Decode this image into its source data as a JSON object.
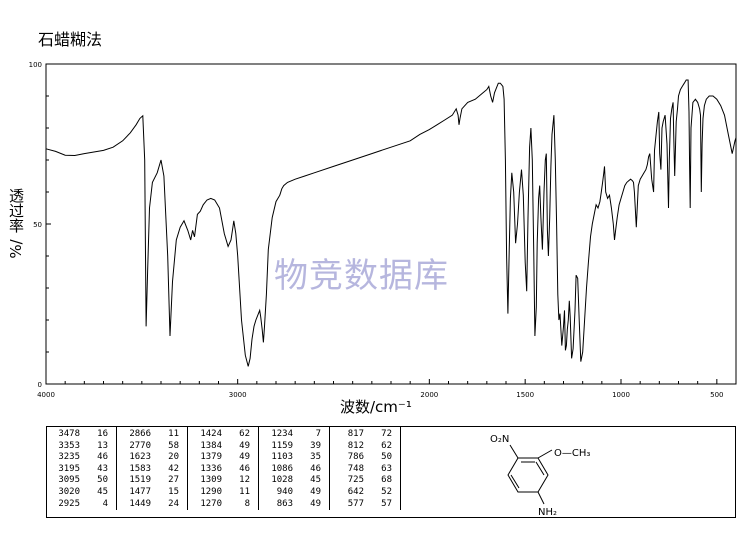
{
  "method": "石蜡糊法",
  "ylabel_main": "透过率",
  "ylabel_unit": "%/",
  "xlabel": "波数/cm⁻¹",
  "watermark": "物竞数据库",
  "colors": {
    "line": "#000000",
    "watermark": "#b6b6de"
  },
  "chart_data": {
    "type": "line",
    "title": "",
    "xlabel": "波数/cm⁻¹",
    "ylabel": "透过率 %/",
    "xlim": [
      4000,
      400
    ],
    "ylim": [
      0,
      100
    ],
    "x_ticks": [
      4000,
      3000,
      2000,
      1500,
      1000,
      500
    ],
    "y_ticks": [
      0,
      50,
      100
    ],
    "grid": false,
    "x": [
      4000,
      3950,
      3900,
      3850,
      3800,
      3750,
      3700,
      3650,
      3600,
      3560,
      3530,
      3510,
      3495,
      3485,
      3478,
      3470,
      3460,
      3445,
      3420,
      3400,
      3385,
      3365,
      3353,
      3340,
      3320,
      3300,
      3280,
      3260,
      3245,
      3235,
      3225,
      3210,
      3195,
      3180,
      3160,
      3140,
      3120,
      3095,
      3070,
      3050,
      3035,
      3025,
      3020,
      3010,
      3000,
      2990,
      2980,
      2960,
      2945,
      2935,
      2925,
      2915,
      2905,
      2895,
      2885,
      2880,
      2872,
      2866,
      2860,
      2850,
      2840,
      2820,
      2800,
      2780,
      2770,
      2760,
      2740,
      2700,
      2650,
      2600,
      2500,
      2400,
      2300,
      2200,
      2100,
      2050,
      2000,
      1960,
      1920,
      1880,
      1860,
      1850,
      1845,
      1840,
      1830,
      1800,
      1760,
      1720,
      1700,
      1690,
      1680,
      1670,
      1660,
      1640,
      1630,
      1623,
      1616,
      1610,
      1603,
      1597,
      1590,
      1583,
      1577,
      1570,
      1560,
      1550,
      1540,
      1530,
      1519,
      1510,
      1500,
      1492,
      1485,
      1477,
      1470,
      1463,
      1455,
      1449,
      1442,
      1437,
      1430,
      1424,
      1418,
      1410,
      1402,
      1395,
      1390,
      1384,
      1379,
      1372,
      1366,
      1360,
      1350,
      1343,
      1336,
      1330,
      1324,
      1318,
      1309,
      1300,
      1295,
      1290,
      1285,
      1280,
      1275,
      1270,
      1265,
      1258,
      1250,
      1240,
      1234,
      1226,
      1218,
      1210,
      1200,
      1190,
      1180,
      1170,
      1159,
      1150,
      1140,
      1130,
      1120,
      1110,
      1103,
      1096,
      1090,
      1086,
      1080,
      1070,
      1060,
      1050,
      1040,
      1034,
      1028,
      1020,
      1010,
      1000,
      990,
      980,
      970,
      960,
      950,
      940,
      935,
      930,
      920,
      910,
      900,
      890,
      880,
      870,
      863,
      856,
      850,
      840,
      830,
      825,
      817,
      810,
      803,
      798,
      792,
      786,
      780,
      770,
      760,
      752,
      748,
      742,
      735,
      728,
      725,
      720,
      712,
      705,
      700,
      690,
      680,
      670,
      660,
      650,
      645,
      642,
      639,
      635,
      625,
      612,
      600,
      590,
      585,
      581,
      577,
      572,
      565,
      555,
      540,
      520,
      500,
      480,
      460,
      440,
      420,
      405,
      400
    ],
    "y": [
      73.5,
      72.7,
      71.5,
      71.4,
      72.0,
      72.5,
      73.0,
      74.0,
      76.0,
      78.5,
      81.0,
      83.0,
      83.8,
      70.0,
      18.0,
      35.0,
      55.0,
      63.0,
      66.0,
      70.0,
      65.0,
      40.0,
      15.0,
      32.0,
      45.0,
      49.0,
      51.0,
      48.0,
      45.0,
      48.0,
      46.0,
      53.0,
      54.0,
      56.0,
      57.5,
      58.0,
      57.5,
      55.0,
      47.0,
      43.0,
      45.0,
      49.0,
      51.0,
      47.0,
      40.0,
      30.0,
      20.0,
      9.0,
      5.5,
      8.0,
      14.0,
      18.0,
      20.0,
      21.5,
      23.0,
      21.0,
      17.0,
      13.0,
      18.0,
      28.0,
      42.0,
      52.0,
      57.0,
      59.0,
      61.0,
      62.0,
      63.0,
      64.0,
      65.0,
      66.0,
      68.0,
      70.0,
      72.0,
      74.0,
      76.0,
      78.0,
      79.5,
      81.0,
      82.5,
      84.0,
      86.0,
      84.0,
      81.0,
      83.0,
      86.0,
      88.0,
      89.0,
      91.0,
      92.0,
      93.0,
      90.0,
      88.0,
      91.0,
      94.0,
      94.0,
      93.5,
      93.0,
      89.0,
      70.0,
      40.0,
      22.0,
      43.0,
      58.0,
      66.0,
      60.0,
      44.0,
      50.0,
      60.0,
      67.0,
      59.0,
      38.0,
      29.0,
      52.0,
      74.0,
      80.0,
      70.0,
      40.0,
      15.0,
      24.0,
      44.0,
      58.0,
      62.0,
      52.0,
      42.0,
      60.0,
      70.0,
      72.0,
      48.0,
      40.0,
      52.0,
      68.0,
      78.0,
      84.0,
      70.0,
      50.0,
      28.0,
      20.0,
      22.0,
      12.0,
      18.0,
      23.0,
      10.5,
      12.0,
      17.0,
      20.0,
      26.0,
      21.0,
      8.0,
      11.0,
      23.0,
      34.0,
      33.0,
      20.0,
      7.0,
      10.0,
      20.0,
      30.0,
      38.0,
      46.0,
      50.0,
      53.0,
      56.0,
      55.0,
      57.0,
      60.0,
      63.0,
      66.0,
      68.0,
      60.0,
      58.0,
      59.0,
      55.0,
      50.0,
      45.0,
      48.0,
      52.0,
      56.0,
      58.0,
      60.0,
      62.0,
      63.0,
      63.5,
      64.0,
      63.5,
      63.0,
      60.0,
      49.0,
      62.0,
      64.0,
      65.0,
      66.0,
      67.0,
      68.5,
      71.0,
      72.0,
      64.0,
      60.0,
      73.0,
      78.0,
      82.0,
      85.0,
      72.0,
      67.0,
      80.0,
      82.0,
      84.0,
      75.0,
      55.0,
      70.0,
      83.0,
      86.0,
      88.0,
      78.0,
      65.0,
      82.0,
      86.0,
      90.0,
      92.0,
      93.0,
      94.0,
      95.0,
      95.0,
      85.0,
      68.0,
      55.0,
      80.0,
      88.0,
      89.0,
      88.0,
      86.0,
      84.0,
      60.0,
      75.0,
      83.0,
      87.0,
      89.0,
      90.0,
      90.0,
      89.0,
      87.0,
      84.0,
      78.0,
      72.0,
      76.0,
      77.0
    ]
  },
  "peak_table": [
    [
      [
        "3478",
        "16"
      ],
      [
        "3353",
        "13"
      ],
      [
        "3235",
        "46"
      ],
      [
        "3195",
        "43"
      ],
      [
        "3095",
        "50"
      ],
      [
        "3020",
        "45"
      ],
      [
        "2925",
        "4"
      ]
    ],
    [
      [
        "2866",
        "11"
      ],
      [
        "2770",
        "58"
      ],
      [
        "1623",
        "20"
      ],
      [
        "1583",
        "42"
      ],
      [
        "1519",
        "27"
      ],
      [
        "1477",
        "15"
      ],
      [
        "1449",
        "24"
      ]
    ],
    [
      [
        "1424",
        "62"
      ],
      [
        "1384",
        "49"
      ],
      [
        "1379",
        "49"
      ],
      [
        "1336",
        "46"
      ],
      [
        "1309",
        "12"
      ],
      [
        "1290",
        "11"
      ],
      [
        "1270",
        "8"
      ]
    ],
    [
      [
        "1234",
        "7"
      ],
      [
        "1159",
        "39"
      ],
      [
        "1103",
        "35"
      ],
      [
        "1086",
        "46"
      ],
      [
        "1028",
        "45"
      ],
      [
        "940",
        "49"
      ],
      [
        "863",
        "49"
      ]
    ],
    [
      [
        "817",
        "72"
      ],
      [
        "812",
        "62"
      ],
      [
        "786",
        "50"
      ],
      [
        "748",
        "63"
      ],
      [
        "725",
        "68"
      ],
      [
        "642",
        "52"
      ],
      [
        "577",
        "57"
      ]
    ]
  ],
  "structure": {
    "nitro": "O₂N",
    "methoxy": "O—CH₃",
    "amine": "NH₂"
  }
}
